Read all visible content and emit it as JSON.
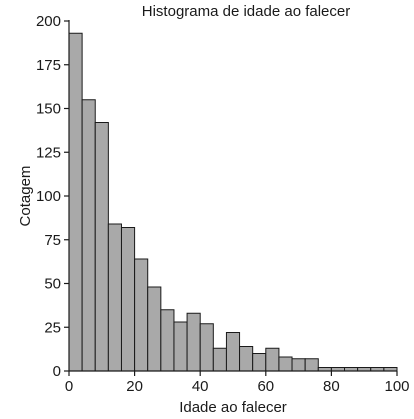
{
  "chart_data": {
    "type": "bar",
    "title": "Histograma de idade ao falecer",
    "xlabel": "Idade ao falecer",
    "ylabel": "Cotagem",
    "xlim": [
      0,
      100
    ],
    "ylim": [
      0,
      200
    ],
    "xticks": [
      0,
      20,
      40,
      60,
      80,
      100
    ],
    "yticks": [
      0,
      25,
      50,
      75,
      100,
      125,
      150,
      175,
      200
    ],
    "bin_edges": [
      0,
      4,
      8,
      12,
      16,
      20,
      24,
      28,
      32,
      36,
      40,
      44,
      48,
      52,
      56,
      60,
      64,
      68,
      72,
      76,
      80,
      84,
      88,
      92,
      96,
      100
    ],
    "values": [
      193,
      155,
      142,
      84,
      82,
      64,
      48,
      35,
      28,
      33,
      27,
      13,
      22,
      14,
      10,
      13,
      8,
      7,
      7,
      2,
      2,
      2,
      2,
      2,
      2
    ],
    "bar_color": "#a9a9a9",
    "edge_color": "#1a1a1a",
    "grid": false,
    "legend": "none"
  }
}
